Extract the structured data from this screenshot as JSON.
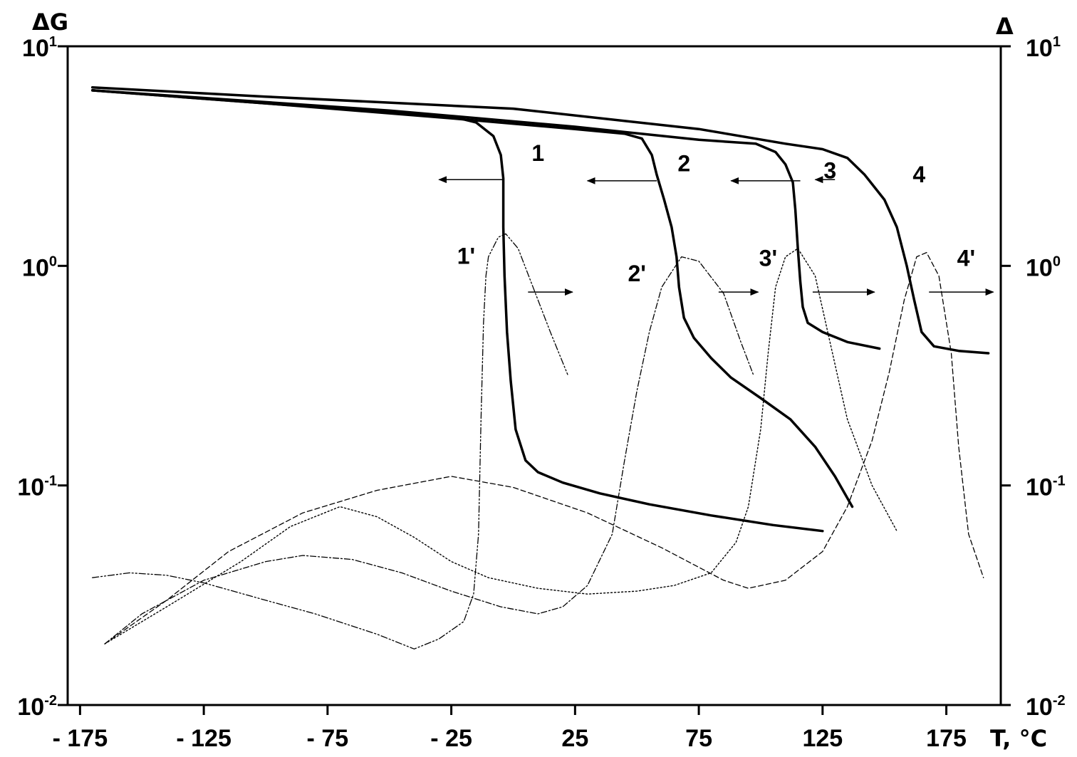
{
  "chart_data": {
    "type": "line",
    "x_axis": {
      "label": "T, °C",
      "range": [
        -180,
        197
      ],
      "ticks": [
        -175,
        -125,
        -75,
        -25,
        25,
        75,
        125,
        175
      ],
      "tick_labels": [
        "- 175",
        "- 125",
        "- 75",
        "- 25",
        "25",
        "75",
        "125",
        "175"
      ]
    },
    "y_left": {
      "label": "ΔG",
      "scale": "log",
      "range": [
        0.01,
        10
      ],
      "ticks": [
        0.01,
        0.1,
        1,
        10
      ],
      "tick_labels": [
        {
          "base": "10",
          "exp": "-2"
        },
        {
          "base": "10",
          "exp": "-1"
        },
        {
          "base": "10",
          "exp": "0"
        },
        {
          "base": "10",
          "exp": "1"
        }
      ]
    },
    "y_right": {
      "label": "Δ",
      "scale": "log",
      "range": [
        0.01,
        10
      ],
      "ticks": [
        0.01,
        0.1,
        1,
        10
      ],
      "tick_labels": [
        {
          "base": "10",
          "exp": "-2"
        },
        {
          "base": "10",
          "exp": "-1"
        },
        {
          "base": "10",
          "exp": "0"
        },
        {
          "base": "10",
          "exp": "1"
        }
      ]
    },
    "grid": false,
    "series": [
      {
        "name": "1",
        "axis": "left",
        "style": "solid",
        "points": [
          [
            -170,
            6.3
          ],
          [
            -100,
            5.5
          ],
          [
            -50,
            5.0
          ],
          [
            -25,
            4.8
          ],
          [
            -15,
            4.5
          ],
          [
            -8,
            3.9
          ],
          [
            -5,
            3.2
          ],
          [
            -4,
            2.5
          ],
          [
            -4,
            1.5
          ],
          [
            -3.5,
            0.9
          ],
          [
            -2.5,
            0.5
          ],
          [
            -1,
            0.3
          ],
          [
            1,
            0.18
          ],
          [
            5,
            0.13
          ],
          [
            10,
            0.115
          ],
          [
            20,
            0.103
          ],
          [
            35,
            0.092
          ],
          [
            55,
            0.082
          ],
          [
            80,
            0.073
          ],
          [
            105,
            0.066
          ],
          [
            125,
            0.062
          ]
        ]
      },
      {
        "name": "2",
        "axis": "left",
        "style": "solid",
        "points": [
          [
            -170,
            6.3
          ],
          [
            -100,
            5.5
          ],
          [
            -25,
            4.7
          ],
          [
            25,
            4.2
          ],
          [
            45,
            4.0
          ],
          [
            52,
            3.8
          ],
          [
            56,
            3.2
          ],
          [
            58,
            2.6
          ],
          [
            61,
            2.0
          ],
          [
            64,
            1.5
          ],
          [
            66,
            1.1
          ],
          [
            67,
            0.8
          ],
          [
            69,
            0.58
          ],
          [
            73,
            0.47
          ],
          [
            80,
            0.38
          ],
          [
            88,
            0.31
          ],
          [
            100,
            0.25
          ],
          [
            112,
            0.2
          ],
          [
            122,
            0.15
          ],
          [
            130,
            0.11
          ],
          [
            137,
            0.08
          ]
        ]
      },
      {
        "name": "3",
        "axis": "left",
        "style": "solid",
        "points": [
          [
            -170,
            6.3
          ],
          [
            -50,
            5.1
          ],
          [
            25,
            4.3
          ],
          [
            75,
            3.75
          ],
          [
            98,
            3.6
          ],
          [
            106,
            3.3
          ],
          [
            110,
            2.9
          ],
          [
            113,
            2.4
          ],
          [
            114,
            1.8
          ],
          [
            115,
            1.2
          ],
          [
            116,
            0.85
          ],
          [
            117,
            0.65
          ],
          [
            119,
            0.55
          ],
          [
            125,
            0.5
          ],
          [
            135,
            0.45
          ],
          [
            148,
            0.42
          ]
        ]
      },
      {
        "name": "4",
        "axis": "left",
        "style": "solid",
        "points": [
          [
            -170,
            6.5
          ],
          [
            -100,
            5.9
          ],
          [
            0,
            5.2
          ],
          [
            75,
            4.2
          ],
          [
            110,
            3.6
          ],
          [
            125,
            3.4
          ],
          [
            135,
            3.1
          ],
          [
            142,
            2.6
          ],
          [
            150,
            2.0
          ],
          [
            155,
            1.5
          ],
          [
            159,
            1.0
          ],
          [
            162,
            0.7
          ],
          [
            165,
            0.5
          ],
          [
            170,
            0.43
          ],
          [
            180,
            0.41
          ],
          [
            192,
            0.4
          ]
        ]
      },
      {
        "name": "1'",
        "axis": "right",
        "style": "dash-dot-dot",
        "points": [
          [
            -170,
            0.038
          ],
          [
            -155,
            0.04
          ],
          [
            -140,
            0.039
          ],
          [
            -125,
            0.036
          ],
          [
            -100,
            0.03
          ],
          [
            -80,
            0.026
          ],
          [
            -55,
            0.021
          ],
          [
            -40,
            0.018
          ],
          [
            -30,
            0.02
          ],
          [
            -20,
            0.024
          ],
          [
            -16,
            0.032
          ],
          [
            -14,
            0.06
          ],
          [
            -13,
            0.2
          ],
          [
            -12,
            0.55
          ],
          [
            -11,
            0.9
          ],
          [
            -10,
            1.1
          ],
          [
            -6,
            1.35
          ],
          [
            -3,
            1.4
          ],
          [
            2,
            1.2
          ],
          [
            8,
            0.8
          ],
          [
            15,
            0.5
          ],
          [
            22,
            0.32
          ]
        ]
      },
      {
        "name": "2'",
        "axis": "right",
        "style": "dash-dot",
        "points": [
          [
            -165,
            0.019
          ],
          [
            -150,
            0.026
          ],
          [
            -125,
            0.037
          ],
          [
            -100,
            0.045
          ],
          [
            -85,
            0.048
          ],
          [
            -65,
            0.046
          ],
          [
            -45,
            0.04
          ],
          [
            -25,
            0.033
          ],
          [
            -5,
            0.028
          ],
          [
            10,
            0.026
          ],
          [
            20,
            0.028
          ],
          [
            30,
            0.035
          ],
          [
            40,
            0.06
          ],
          [
            45,
            0.13
          ],
          [
            50,
            0.27
          ],
          [
            55,
            0.5
          ],
          [
            60,
            0.8
          ],
          [
            68,
            1.1
          ],
          [
            75,
            1.05
          ],
          [
            85,
            0.75
          ],
          [
            92,
            0.45
          ],
          [
            97,
            0.32
          ]
        ]
      },
      {
        "name": "3'",
        "axis": "right",
        "style": "dotted",
        "points": [
          [
            -165,
            0.019
          ],
          [
            -140,
            0.028
          ],
          [
            -110,
            0.045
          ],
          [
            -90,
            0.065
          ],
          [
            -70,
            0.08
          ],
          [
            -55,
            0.072
          ],
          [
            -40,
            0.058
          ],
          [
            -25,
            0.045
          ],
          [
            -10,
            0.038
          ],
          [
            10,
            0.034
          ],
          [
            30,
            0.032
          ],
          [
            50,
            0.033
          ],
          [
            65,
            0.035
          ],
          [
            80,
            0.04
          ],
          [
            90,
            0.055
          ],
          [
            95,
            0.08
          ],
          [
            100,
            0.18
          ],
          [
            103,
            0.4
          ],
          [
            106,
            0.8
          ],
          [
            110,
            1.1
          ],
          [
            115,
            1.2
          ],
          [
            122,
            0.9
          ],
          [
            128,
            0.45
          ],
          [
            135,
            0.2
          ],
          [
            145,
            0.1
          ],
          [
            155,
            0.062
          ]
        ]
      },
      {
        "name": "4'",
        "axis": "right",
        "style": "dashed",
        "points": [
          [
            -165,
            0.019
          ],
          [
            -140,
            0.03
          ],
          [
            -115,
            0.05
          ],
          [
            -85,
            0.075
          ],
          [
            -55,
            0.095
          ],
          [
            -25,
            0.11
          ],
          [
            0,
            0.098
          ],
          [
            30,
            0.075
          ],
          [
            60,
            0.052
          ],
          [
            85,
            0.037
          ],
          [
            95,
            0.034
          ],
          [
            110,
            0.037
          ],
          [
            125,
            0.05
          ],
          [
            135,
            0.08
          ],
          [
            145,
            0.16
          ],
          [
            152,
            0.33
          ],
          [
            158,
            0.7
          ],
          [
            163,
            1.1
          ],
          [
            167,
            1.15
          ],
          [
            172,
            0.9
          ],
          [
            177,
            0.4
          ],
          [
            180,
            0.15
          ],
          [
            184,
            0.06
          ],
          [
            190,
            0.038
          ]
        ]
      }
    ],
    "curve_labels": [
      {
        "text": "1",
        "x": 10,
        "y": 3.0
      },
      {
        "text": "2",
        "x": 69,
        "y": 2.7
      },
      {
        "text": "3",
        "x": 128,
        "y": 2.5
      },
      {
        "text": "4",
        "x": 164,
        "y": 2.4
      },
      {
        "text": "1'",
        "x": -19,
        "y": 1.02
      },
      {
        "text": "2'",
        "x": 50,
        "y": 0.85
      },
      {
        "text": "3'",
        "x": 103,
        "y": 1.0
      },
      {
        "text": "4'",
        "x": 183,
        "y": 1.0
      }
    ],
    "arrows": [
      {
        "axis": "left",
        "from": [
          -4,
          2.47
        ],
        "to": [
          -30,
          2.47
        ]
      },
      {
        "axis": "left",
        "from": [
          58,
          2.44
        ],
        "to": [
          30,
          2.44
        ]
      },
      {
        "axis": "left",
        "from": [
          116,
          2.44
        ],
        "to": [
          88,
          2.44
        ]
      },
      {
        "axis": "left",
        "from": [
          130,
          2.47
        ],
        "to": [
          122,
          2.47
        ]
      },
      {
        "axis": "right",
        "from": [
          6,
          0.76
        ],
        "to": [
          24,
          0.76
        ]
      },
      {
        "axis": "right",
        "from": [
          83,
          0.76
        ],
        "to": [
          99,
          0.76
        ]
      },
      {
        "axis": "right",
        "from": [
          121,
          0.76
        ],
        "to": [
          146,
          0.76
        ]
      },
      {
        "axis": "right",
        "from": [
          168,
          0.76
        ],
        "to": [
          194,
          0.76
        ]
      }
    ]
  }
}
